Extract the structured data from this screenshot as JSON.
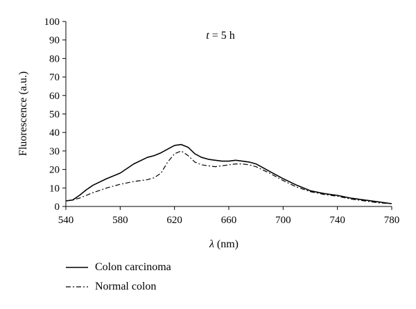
{
  "chart_data": {
    "type": "line",
    "title": "",
    "annotation": {
      "var": "t",
      "rest": " = 5 h"
    },
    "xlabel": {
      "symbol": "λ",
      "unit": " (nm)"
    },
    "ylabel": "Fluorescence (a.u.)",
    "xlim": [
      540,
      780
    ],
    "ylim": [
      0,
      100
    ],
    "xticks": [
      540,
      580,
      620,
      660,
      700,
      740,
      780
    ],
    "yticks": [
      0,
      10,
      20,
      30,
      40,
      50,
      60,
      70,
      80,
      90,
      100
    ],
    "grid": false,
    "legend_position": "bottom-left",
    "series": [
      {
        "name": "Colon carcinoma",
        "style": "solid",
        "color": "#000000",
        "x": [
          540,
          545,
          550,
          555,
          560,
          570,
          580,
          590,
          600,
          605,
          610,
          615,
          620,
          625,
          630,
          635,
          640,
          645,
          650,
          655,
          660,
          665,
          670,
          675,
          680,
          690,
          700,
          710,
          720,
          730,
          740,
          750,
          760,
          770,
          780
        ],
        "y": [
          3,
          3.5,
          6,
          9,
          11.5,
          15,
          18,
          23,
          26.5,
          27.5,
          29,
          31,
          33,
          33.5,
          32,
          28.5,
          26.5,
          25.5,
          25,
          24.5,
          24.5,
          25,
          24.5,
          24,
          23,
          19,
          15,
          11.5,
          8.5,
          7,
          6,
          4.5,
          3.5,
          2.5,
          1.5
        ]
      },
      {
        "name": "Normal colon",
        "style": "dash-dot",
        "color": "#000000",
        "x": [
          540,
          545,
          550,
          555,
          560,
          570,
          580,
          590,
          600,
          605,
          610,
          615,
          620,
          625,
          630,
          635,
          640,
          645,
          650,
          655,
          660,
          665,
          670,
          675,
          680,
          690,
          700,
          710,
          720,
          730,
          740,
          750,
          760,
          770,
          780
        ],
        "y": [
          3,
          3.5,
          4.5,
          6,
          7.5,
          10,
          12,
          13.5,
          14.5,
          15.5,
          18,
          24,
          28.5,
          30,
          27.5,
          24,
          22.5,
          22,
          21.5,
          22,
          22.5,
          23,
          23,
          22.5,
          21.5,
          18,
          14,
          10.5,
          8,
          6.5,
          5.5,
          4,
          3,
          2,
          1.5
        ]
      }
    ]
  }
}
